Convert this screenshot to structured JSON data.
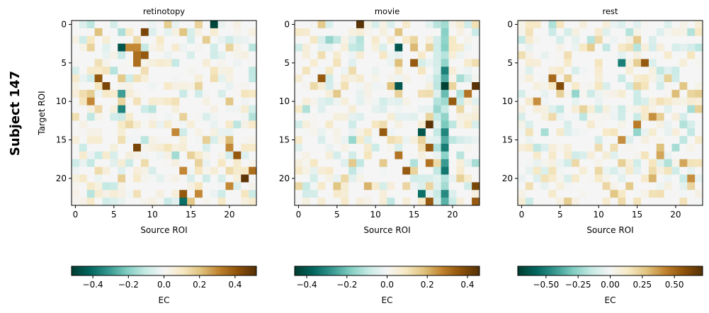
{
  "figure": {
    "suptitle": "Subject 147",
    "colormap": "BrBG (reversed)",
    "colors": {
      "low": "#00403a",
      "mid": "#f4f4f2",
      "high": "#543005",
      "frame": "#000000"
    }
  },
  "chart_data": [
    {
      "type": "heatmap",
      "title": "retinotopy",
      "xlabel": "Source ROI",
      "ylabel": "Target ROI",
      "grid_size": 24,
      "xticks": [
        0,
        5,
        10,
        15,
        20
      ],
      "yticks": [
        0,
        5,
        10,
        15,
        20
      ],
      "vlim": [
        -0.52,
        0.52
      ],
      "colorbar": {
        "label": "EC",
        "ticks": [
          -0.4,
          -0.2,
          0.0,
          0.2,
          0.4
        ],
        "tick_labels": [
          "−0.4",
          "−0.2",
          "0.0",
          "0.2",
          "0.4"
        ]
      },
      "seed": 147,
      "strong_cells": [
        [
          0,
          18,
          -0.5
        ],
        [
          1,
          9,
          0.45
        ],
        [
          3,
          6,
          -0.46
        ],
        [
          3,
          7,
          0.3
        ],
        [
          3,
          8,
          0.3
        ],
        [
          4,
          9,
          0.4
        ],
        [
          4,
          8,
          0.35
        ],
        [
          5,
          8,
          0.35
        ],
        [
          7,
          3,
          0.4
        ],
        [
          8,
          4,
          0.45
        ],
        [
          9,
          6,
          -0.3
        ],
        [
          10,
          2,
          0.3
        ],
        [
          11,
          6,
          -0.35
        ],
        [
          14,
          13,
          0.3
        ],
        [
          16,
          8,
          0.45
        ],
        [
          16,
          20,
          0.3
        ],
        [
          17,
          21,
          0.4
        ],
        [
          19,
          14,
          0.3
        ],
        [
          20,
          22,
          0.5
        ],
        [
          21,
          20,
          0.3
        ],
        [
          22,
          14,
          0.4
        ],
        [
          23,
          14,
          -0.4
        ],
        [
          22,
          16,
          0.3
        ],
        [
          19,
          23,
          0.35
        ]
      ]
    },
    {
      "type": "heatmap",
      "title": "movie",
      "xlabel": "Source ROI",
      "ylabel": "",
      "grid_size": 24,
      "xticks": [
        0,
        5,
        10,
        15,
        20
      ],
      "yticks": [
        0,
        5,
        10,
        15,
        20
      ],
      "vlim": [
        -0.46,
        0.46
      ],
      "colorbar": {
        "label": "EC",
        "ticks": [
          -0.4,
          -0.2,
          0.0,
          0.2,
          0.4
        ],
        "tick_labels": [
          "−0.4",
          "−0.2",
          "0.0",
          "0.2",
          "0.4"
        ]
      },
      "seed": 2147,
      "strong_cells": [
        [
          0,
          8,
          0.45
        ],
        [
          3,
          13,
          -0.4
        ],
        [
          5,
          15,
          0.35
        ],
        [
          7,
          3,
          0.35
        ],
        [
          8,
          13,
          -0.4
        ],
        [
          8,
          19,
          -0.45
        ],
        [
          8,
          23,
          0.45
        ],
        [
          9,
          22,
          0.3
        ],
        [
          10,
          20,
          0.35
        ],
        [
          13,
          17,
          0.45
        ],
        [
          14,
          11,
          0.35
        ],
        [
          14,
          16,
          -0.4
        ],
        [
          16,
          17,
          0.35
        ],
        [
          17,
          13,
          0.3
        ],
        [
          18,
          17,
          0.3
        ],
        [
          19,
          14,
          0.35
        ],
        [
          21,
          23,
          0.4
        ],
        [
          22,
          16,
          -0.35
        ],
        [
          22,
          19,
          -0.3
        ],
        [
          23,
          17,
          0.35
        ],
        [
          23,
          23,
          0.35
        ]
      ],
      "column_bias": {
        "19": -0.22,
        "18": -0.08
      }
    },
    {
      "type": "heatmap",
      "title": "rest",
      "xlabel": "Source ROI",
      "ylabel": "",
      "grid_size": 24,
      "xticks": [
        0,
        5,
        10,
        15,
        20
      ],
      "yticks": [
        0,
        5,
        10,
        15,
        20
      ],
      "vlim": [
        -0.72,
        0.72
      ],
      "colorbar": {
        "label": "EC",
        "ticks": [
          -0.5,
          -0.25,
          0.0,
          0.25,
          0.5
        ],
        "tick_labels": [
          "−0.50",
          "−0.25",
          "0.00",
          "0.25",
          "0.50"
        ]
      },
      "seed": 3147,
      "strong_cells": [
        [
          5,
          13,
          -0.5
        ],
        [
          5,
          16,
          0.55
        ],
        [
          7,
          4,
          0.5
        ],
        [
          8,
          5,
          0.6
        ],
        [
          10,
          2,
          0.4
        ],
        [
          12,
          17,
          0.4
        ],
        [
          13,
          15,
          0.45
        ],
        [
          15,
          13,
          0.4
        ],
        [
          18,
          21,
          0.35
        ],
        [
          20,
          22,
          0.4
        ],
        [
          17,
          18,
          0.35
        ]
      ]
    }
  ]
}
